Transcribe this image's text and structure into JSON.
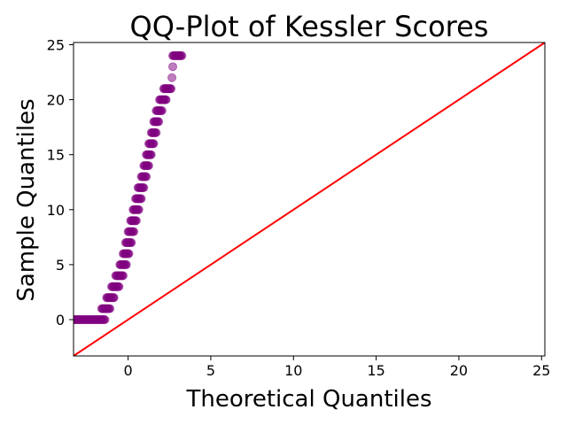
{
  "chart_data": {
    "type": "scatter",
    "title": "QQ-Plot of Kessler Scores",
    "xlabel": "Theoretical Quantiles",
    "ylabel": "Sample Quantiles",
    "xlim": [
      -3.3,
      25.2
    ],
    "ylim": [
      -3.3,
      25.2
    ],
    "xticks": [
      0,
      5,
      10,
      15,
      20,
      25
    ],
    "yticks": [
      0,
      5,
      10,
      15,
      20,
      25
    ],
    "grid": false,
    "marker_color": "#800080",
    "line_color": "#ff0000",
    "reference_line": {
      "slope": 1,
      "intercept": 0
    },
    "point_bands": [
      {
        "y": 0,
        "x_from": -3.3,
        "x_to": -1.4
      },
      {
        "y": 1,
        "x_from": -1.6,
        "x_to": -1.1
      },
      {
        "y": 2,
        "x_from": -1.3,
        "x_to": -0.85
      },
      {
        "y": 3,
        "x_from": -1.0,
        "x_to": -0.55
      },
      {
        "y": 4,
        "x_from": -0.75,
        "x_to": -0.3
      },
      {
        "y": 5,
        "x_from": -0.5,
        "x_to": -0.1
      },
      {
        "y": 6,
        "x_from": -0.3,
        "x_to": 0.05
      },
      {
        "y": 7,
        "x_from": -0.15,
        "x_to": 0.2
      },
      {
        "y": 8,
        "x_from": 0.0,
        "x_to": 0.35
      },
      {
        "y": 9,
        "x_from": 0.15,
        "x_to": 0.5
      },
      {
        "y": 10,
        "x_from": 0.3,
        "x_to": 0.65
      },
      {
        "y": 11,
        "x_from": 0.45,
        "x_to": 0.8
      },
      {
        "y": 12,
        "x_from": 0.6,
        "x_to": 0.95
      },
      {
        "y": 13,
        "x_from": 0.8,
        "x_to": 1.1
      },
      {
        "y": 14,
        "x_from": 0.95,
        "x_to": 1.25
      },
      {
        "y": 15,
        "x_from": 1.1,
        "x_to": 1.4
      },
      {
        "y": 16,
        "x_from": 1.25,
        "x_to": 1.55
      },
      {
        "y": 17,
        "x_from": 1.4,
        "x_to": 1.7
      },
      {
        "y": 18,
        "x_from": 1.55,
        "x_to": 1.85
      },
      {
        "y": 19,
        "x_from": 1.7,
        "x_to": 2.05
      },
      {
        "y": 20,
        "x_from": 1.9,
        "x_to": 2.3
      },
      {
        "y": 21,
        "x_from": 2.15,
        "x_to": 2.6
      },
      {
        "y": 22,
        "x_from": 2.65,
        "x_to": 2.65
      },
      {
        "y": 23,
        "x_from": 2.7,
        "x_to": 2.7
      },
      {
        "y": 24,
        "x_from": 2.7,
        "x_to": 3.25
      }
    ]
  }
}
